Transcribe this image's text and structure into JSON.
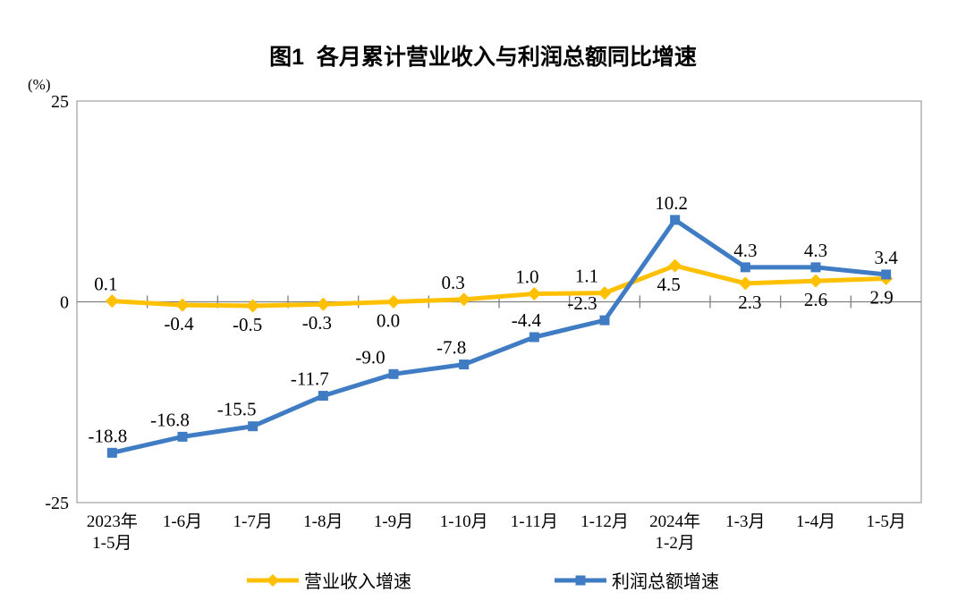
{
  "title": "图1  各月累计营业收入与利润总额同比增速",
  "axes": {
    "unit_label": "(%)",
    "y_ticks": [
      25,
      0,
      -25
    ],
    "ylim": [
      -25,
      25
    ]
  },
  "chart_data": {
    "type": "line",
    "title": "图1  各月累计营业收入与利润总额同比增速",
    "ylabel": "(%)",
    "xlabel": "",
    "ylim": [
      -25,
      25
    ],
    "yticks": [
      25,
      0,
      -25
    ],
    "grid": false,
    "legend_position": "bottom",
    "categories": [
      "2023年\n1-5月",
      "1-6月",
      "1-7月",
      "1-8月",
      "1-9月",
      "1-10月",
      "1-11月",
      "1-12月",
      "2024年\n1-2月",
      "1-3月",
      "1-4月",
      "1-5月"
    ],
    "series": [
      {
        "name": "营业收入增速",
        "color": "#FFC000",
        "marker": "diamond",
        "values": [
          0.1,
          -0.4,
          -0.5,
          -0.3,
          0.0,
          0.3,
          1.0,
          1.1,
          4.5,
          2.3,
          2.6,
          2.9
        ],
        "labels": [
          "0.1",
          "-0.4",
          "-0.5",
          "-0.3",
          "0.0",
          "0.3",
          "1.0",
          "1.1",
          "4.5",
          "2.3",
          "2.6",
          "2.9"
        ],
        "label_positions": [
          "above",
          "below",
          "below",
          "below",
          "below",
          "above",
          "above",
          "above",
          "below",
          "below",
          "below",
          "below"
        ],
        "label_dx": [
          -7,
          -4,
          -6,
          -7,
          -6,
          -12,
          -8,
          -20,
          -7,
          5,
          0,
          -5
        ]
      },
      {
        "name": "利润总额增速",
        "color": "#3F7CC4",
        "marker": "square",
        "values": [
          -18.8,
          -16.8,
          -15.5,
          -11.7,
          -9.0,
          -7.8,
          -4.4,
          -2.3,
          10.2,
          4.3,
          4.3,
          3.4
        ],
        "labels": [
          "-18.8",
          "-16.8",
          "-15.5",
          "-11.7",
          "-9.0",
          "-7.8",
          "-4.4",
          "-2.3",
          "10.2",
          "4.3",
          "4.3",
          "3.4"
        ],
        "label_positions": [
          "above",
          "above",
          "above",
          "above",
          "above",
          "above",
          "above",
          "above",
          "above",
          "above",
          "above",
          "above"
        ],
        "label_dx": [
          -5,
          -14,
          -18,
          -15,
          -26,
          -14,
          -9,
          -25,
          -4,
          0,
          0,
          0
        ]
      }
    ],
    "colors": {
      "plot_border": "#A6A6A6",
      "zero_axis": "#808080",
      "text": "#000000"
    }
  }
}
